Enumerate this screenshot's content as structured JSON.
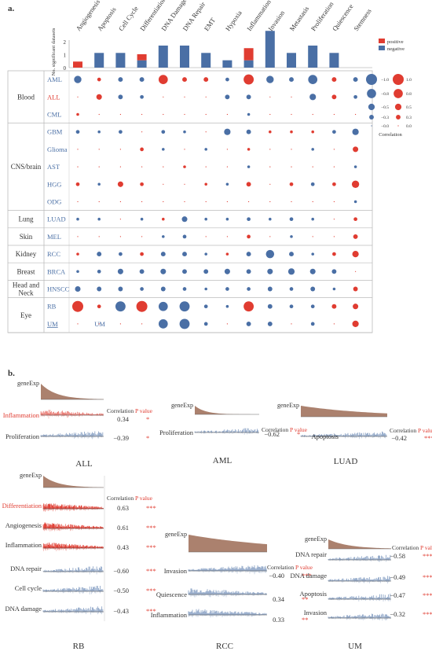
{
  "panel_a": {
    "label": "a.",
    "legend": {
      "positive": "positive",
      "negative": "negative"
    },
    "bar_axis_label": "No. significant datasets",
    "size_legend": {
      "neg": [
        "−1.0",
        "−0.8",
        "−0.5",
        "−0.3",
        "−0.0"
      ],
      "pos": [
        "1.0",
        "0.8",
        "0.5",
        "0.3",
        "0.0"
      ]
    },
    "correlation_label": "Correlation"
  },
  "panel_b": {
    "label": "b.",
    "gene_exp": "geneExp",
    "corr_header": "Correlation",
    "p_header": "P value",
    "groups": {
      "ALL": {
        "title": "ALL",
        "rows": [
          {
            "name": "Inflammation",
            "corr": "0.34",
            "p": "*"
          },
          {
            "name": "Proliferation",
            "corr": "−0.39",
            "p": "*"
          }
        ]
      },
      "AML": {
        "title": "AML",
        "rows": [
          {
            "name": "Proliferation",
            "corr": "−0.62",
            "p": "*"
          }
        ]
      },
      "LUAD": {
        "title": "LUAD",
        "rows": [
          {
            "name": "Apoptosis",
            "corr": "−0.42",
            "p": "***"
          }
        ]
      },
      "RB": {
        "title": "RB",
        "rows": [
          {
            "name": "Differentiation",
            "corr": "0.63",
            "p": "***"
          },
          {
            "name": "Angiogenesis",
            "corr": "0.61",
            "p": "***"
          },
          {
            "name": "Inflammation",
            "corr": "0.43",
            "p": "***"
          },
          {
            "name": "DNA repair",
            "corr": "−0.60",
            "p": "***"
          },
          {
            "name": "Cell cycle",
            "corr": "−0.50",
            "p": "***"
          },
          {
            "name": "DNA damage",
            "corr": "−0.43",
            "p": "***"
          }
        ]
      },
      "RCC": {
        "title": "RCC",
        "rows": [
          {
            "name": "Invasion",
            "corr": "−0.40",
            "p": "***"
          },
          {
            "name": "Quiescence",
            "corr": "0.34",
            "p": "**"
          },
          {
            "name": "Inflammation",
            "corr": "0.33",
            "p": "**"
          }
        ]
      },
      "UM": {
        "title": "UM",
        "rows": [
          {
            "name": "DNA repair",
            "corr": "−0.58",
            "p": "***"
          },
          {
            "name": "DNA damage",
            "corr": "−0.49",
            "p": "***"
          },
          {
            "name": "Apoptosis",
            "corr": "−0.47",
            "p": "***"
          },
          {
            "name": "Invasion",
            "corr": "−0.32",
            "p": "***"
          }
        ]
      }
    }
  },
  "chart_data": {
    "type": "scatter",
    "categories": [
      "Angiogenesis",
      "Apoptosis",
      "Cell Cycle",
      "Differentiation",
      "DNA Damage",
      "DNA Repair",
      "EMT",
      "Hypoxia",
      "Inflammation",
      "Invasion",
      "Metastasis",
      "Proliferation",
      "Quiescence",
      "Stemness"
    ],
    "bars": {
      "positive": [
        1,
        0,
        0,
        1,
        0,
        0,
        0,
        0,
        2,
        0,
        0,
        0,
        0,
        0
      ],
      "negative": [
        0,
        2,
        2,
        1,
        3,
        3,
        2,
        1,
        1,
        5,
        2,
        3,
        2,
        0
      ],
      "ticks": [
        0,
        1,
        2
      ]
    },
    "group_labels": [
      {
        "name": "Blood",
        "rows": 3
      },
      {
        "name": "CNS/brain",
        "rows": 5
      },
      {
        "name": "Lung",
        "rows": 1
      },
      {
        "name": "Skin",
        "rows": 1
      },
      {
        "name": "Kidney",
        "rows": 1
      },
      {
        "name": "Breast",
        "rows": 1
      },
      {
        "name": "Head and Neck",
        "rows": 1
      },
      {
        "name": "Eye",
        "rows": 2
      }
    ],
    "rows": [
      "AML",
      "ALL",
      "CML",
      "GBM",
      "Glioma",
      "AST",
      "HGG",
      "ODG",
      "LUAD",
      "MEL",
      "RCC",
      "BRCA",
      "HNSCC",
      "RB",
      "UM"
    ],
    "row_colors": [
      "blue",
      "red",
      "blue",
      "blue",
      "blue",
      "blue",
      "blue",
      "blue",
      "blue",
      "blue",
      "blue",
      "blue",
      "blue",
      "blue",
      "blue"
    ],
    "matrix": [
      [
        -0.6,
        0.2,
        -0.3,
        -0.3,
        0.8,
        0.3,
        0.3,
        -0.2,
        0.9,
        -0.6,
        -0.3,
        -0.8,
        0.3,
        -0.3
      ],
      [
        0,
        0.4,
        -0.3,
        -0.2,
        0,
        0,
        0,
        -0.3,
        -0.3,
        0,
        0,
        -0.5,
        0.3,
        -0.2
      ],
      [
        0.1,
        0,
        0,
        0,
        0,
        0,
        0,
        0,
        -0.1,
        0,
        0,
        0,
        0,
        0
      ],
      [
        -0.2,
        -0.1,
        -0.2,
        0,
        -0.2,
        -0.1,
        0,
        -0.5,
        -0.3,
        0.1,
        0.1,
        0.1,
        -0.2,
        -0.5
      ],
      [
        0,
        0,
        0,
        0.2,
        -0.1,
        0,
        -0.1,
        0,
        0.1,
        0,
        0,
        -0.1,
        0,
        0.4
      ],
      [
        0,
        0,
        0,
        0,
        0,
        0.1,
        0,
        0,
        -0.1,
        0,
        0,
        0,
        0,
        -0.1
      ],
      [
        0.2,
        -0.1,
        0.4,
        0.2,
        0,
        0,
        0.1,
        -0.1,
        0.3,
        0,
        0.2,
        -0.2,
        0.2,
        0.6
      ],
      [
        0,
        0,
        0,
        0,
        0,
        0,
        0,
        0,
        0,
        0,
        0,
        0,
        0,
        -0.1
      ],
      [
        -0.1,
        -0.1,
        0,
        -0.1,
        0.1,
        -0.4,
        -0.1,
        -0.1,
        -0.2,
        -0.1,
        -0.2,
        -0.1,
        0,
        0.2
      ],
      [
        0,
        0,
        0,
        0,
        -0.1,
        -0.2,
        0,
        0,
        0.2,
        0,
        -0.1,
        0,
        0,
        0.3
      ],
      [
        0.1,
        -0.3,
        -0.2,
        0.2,
        -0.3,
        -0.3,
        -0.1,
        0.1,
        -0.3,
        -0.7,
        -0.3,
        -0.1,
        0.2,
        0.5
      ],
      [
        -0.1,
        -0.2,
        -0.4,
        -0.3,
        -0.4,
        -0.3,
        -0.3,
        -0.4,
        -0.3,
        -0.4,
        -0.5,
        -0.4,
        -0.3,
        0
      ],
      [
        -0.4,
        -0.3,
        -0.3,
        -0.2,
        -0.3,
        -0.2,
        -0.1,
        -0.2,
        -0.2,
        -0.3,
        -0.2,
        -0.3,
        -0.1,
        0.3
      ],
      [
        1.0,
        0.2,
        -0.9,
        1.0,
        -0.8,
        -0.9,
        -0.2,
        -0.1,
        0.9,
        -0.3,
        -0.2,
        -0.2,
        0.3,
        0.4
      ],
      [
        0,
        0,
        0,
        0,
        -0.8,
        -0.9,
        -0.2,
        0,
        -0.3,
        -0.3,
        0,
        -0.2,
        0,
        0.5
      ]
    ],
    "size_legend_values": [
      1.0,
      0.8,
      0.5,
      0.3,
      0.0
    ],
    "colors": {
      "positive": "#e03c31",
      "negative": "#4a6fa5"
    }
  }
}
